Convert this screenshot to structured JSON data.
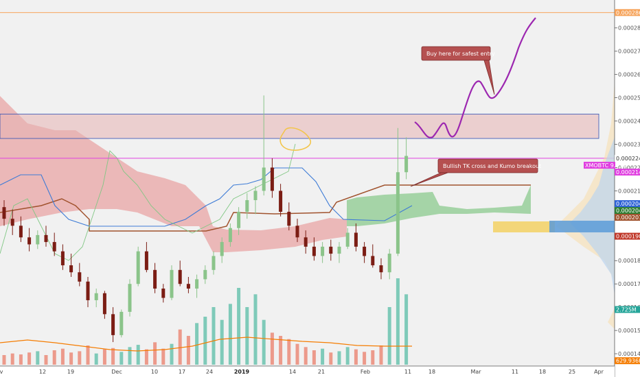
{
  "chart_data": {
    "type": "candlestick",
    "y_scale": {
      "min": 0.00013,
      "max": 0.000292
    },
    "price_ticks": [
      "0.0002800",
      "0.0002700",
      "0.0002600",
      "0.0002500",
      "0.0002400",
      "0.0002300",
      "0.0002200",
      "0.0002100",
      "0.0001900",
      "0.0001800",
      "0.0001700",
      "0.0001600",
      "0.0001500",
      "0.0001400"
    ],
    "x_labels": [
      "v",
      "12",
      "19",
      "Dec",
      "10",
      "17",
      "24",
      "2019",
      "14",
      "21",
      "Feb",
      "11",
      "18",
      "Mar",
      "11",
      "18",
      "25",
      "Apr"
    ],
    "bold_x_labels": [
      "2019"
    ],
    "tags": [
      {
        "text": "0.0002866",
        "price": 0.0002866,
        "bg": "#f6a35a",
        "fg": "#fff"
      },
      {
        "text": "0.0002240",
        "price": 0.000224,
        "bg": "#ffffff",
        "fg": "#333"
      },
      {
        "text": "XMOBTC 9.75%",
        "price": 0.000221,
        "bg": "#e040e0",
        "fg": "#fff"
      },
      {
        "text": "0.0002140",
        "price": 0.000221,
        "bg": "#e040e0",
        "fg": "#fff"
      },
      {
        "text": "0.0002045",
        "price": 0.0002045,
        "bg": "#2f63d6",
        "fg": "#fff"
      },
      {
        "text": "0.0002040",
        "price": 0.0002022,
        "bg": "#2e7d32",
        "fg": "#fff"
      },
      {
        "text": "0.0002015",
        "price": 0.0002,
        "bg": "#a0522d",
        "fg": "#fff"
      },
      {
        "text": "0.0001905",
        "price": 0.0001905,
        "bg": "#c0392b",
        "fg": "#fff"
      },
      {
        "text": "2.725M",
        "price": 0.000159,
        "bg": "#26a69a",
        "fg": "#fff"
      },
      {
        "text": "629.936K",
        "price": 0.000137,
        "bg": "#f57c00",
        "fg": "#fff"
      }
    ],
    "annotations": [
      {
        "text": "Buy here for safest entry"
      },
      {
        "text": "Bullish TK cross and Kumo breakout"
      }
    ],
    "resistance_zone": {
      "top": 0.000243,
      "bottom": 0.0002325
    },
    "horizontal_lines": [
      {
        "price": 0.0002866,
        "color": "#f6a35a"
      },
      {
        "price": 0.000224,
        "color": "#e040e0"
      }
    ],
    "candles": [
      [
        0.000203,
        0.000206,
        0.000195,
        0.000198
      ],
      [
        0.000198,
        0.000202,
        0.000191,
        0.000195
      ],
      [
        0.000195,
        0.000199,
        0.000188,
        0.00019
      ],
      [
        0.00019,
        0.000194,
        0.000184,
        0.000187
      ],
      [
        0.000187,
        0.000193,
        0.000185,
        0.000191
      ],
      [
        0.000191,
        0.000195,
        0.000186,
        0.000188
      ],
      [
        0.000188,
        0.000192,
        0.000182,
        0.000184
      ],
      [
        0.000184,
        0.000187,
        0.000176,
        0.000178
      ],
      [
        0.000178,
        0.000183,
        0.000173,
        0.000175
      ],
      [
        0.000175,
        0.000179,
        0.000169,
        0.000171
      ],
      [
        0.000171,
        0.000173,
        0.00016,
        0.000163
      ],
      [
        0.000163,
        0.000168,
        0.00016,
        0.000166
      ],
      [
        0.000166,
        0.000167,
        0.000155,
        0.000157
      ],
      [
        0.000157,
        0.00016,
        0.000145,
        0.000148
      ],
      [
        0.000148,
        0.000159,
        0.000147,
        0.000158
      ],
      [
        0.000158,
        0.000172,
        0.000156,
        0.00017
      ],
      [
        0.00017,
        0.000186,
        0.000169,
        0.000184
      ],
      [
        0.000184,
        0.000188,
        0.000175,
        0.000176
      ],
      [
        0.000176,
        0.000179,
        0.000166,
        0.000168
      ],
      [
        0.000168,
        0.00017,
        0.000162,
        0.000164
      ],
      [
        0.000164,
        0.000178,
        0.000163,
        0.000176
      ],
      [
        0.000176,
        0.00018,
        0.000169,
        0.00017
      ],
      [
        0.00017,
        0.000173,
        0.000166,
        0.000168
      ],
      [
        0.000168,
        0.000174,
        0.000164,
        0.000172
      ],
      [
        0.000172,
        0.000178,
        0.00017,
        0.000176
      ],
      [
        0.000176,
        0.000184,
        0.000174,
        0.000182
      ],
      [
        0.000182,
        0.00019,
        0.000179,
        0.000188
      ],
      [
        0.000188,
        0.000196,
        0.000186,
        0.000194
      ],
      [
        0.000194,
        0.000203,
        0.000191,
        0.000201
      ],
      [
        0.000201,
        0.000209,
        0.000198,
        0.000206
      ],
      [
        0.000206,
        0.000212,
        0.0002,
        0.00021
      ],
      [
        0.00021,
        0.000251,
        0.000208,
        0.00022
      ],
      [
        0.00022,
        0.000224,
        0.000207,
        0.00021
      ],
      [
        0.00021,
        0.000213,
        0.000199,
        0.000201
      ],
      [
        0.000201,
        0.000205,
        0.000193,
        0.000195
      ],
      [
        0.000195,
        0.000198,
        0.000188,
        0.00019
      ],
      [
        0.00019,
        0.000193,
        0.000183,
        0.000186
      ],
      [
        0.000186,
        0.00019,
        0.00018,
        0.000182
      ],
      [
        0.000182,
        0.000188,
        0.000179,
        0.000186
      ],
      [
        0.000186,
        0.000189,
        0.00018,
        0.000183
      ],
      [
        0.000183,
        0.000188,
        0.000179,
        0.000186
      ],
      [
        0.000186,
        0.000194,
        0.000185,
        0.000192
      ],
      [
        0.000192,
        0.000196,
        0.000184,
        0.000186
      ],
      [
        0.000186,
        0.000188,
        0.000179,
        0.000182
      ],
      [
        0.000182,
        0.000187,
        0.000177,
        0.000178
      ],
      [
        0.000178,
        0.000181,
        0.000172,
        0.000175
      ],
      [
        0.000175,
        0.000185,
        0.000172,
        0.000183
      ],
      [
        0.000183,
        0.000237,
        0.000182,
        0.000218
      ],
      [
        0.000218,
        0.000233,
        0.000215,
        0.000225
      ]
    ],
    "volume_max": 3000000,
    "volumes": [
      300000,
      350000,
      320000,
      380000,
      420000,
      300000,
      450000,
      500000,
      380000,
      420000,
      600000,
      350000,
      480000,
      520000,
      400000,
      550000,
      620000,
      480000,
      700000,
      500000,
      650000,
      1100000,
      900000,
      1300000,
      1500000,
      1800000,
      1400000,
      1900000,
      2400000,
      1800000,
      2200000,
      1400000,
      1000000,
      900000,
      800000,
      650000,
      550000,
      450000,
      500000,
      380000,
      420000,
      550000,
      480000,
      400000,
      450000,
      600000,
      1800000,
      2700000,
      2200000
    ],
    "volume_up": [
      false,
      false,
      false,
      false,
      true,
      false,
      false,
      false,
      false,
      false,
      false,
      true,
      false,
      false,
      true,
      true,
      true,
      false,
      false,
      false,
      true,
      false,
      false,
      true,
      true,
      true,
      true,
      true,
      true,
      true,
      true,
      true,
      false,
      false,
      false,
      false,
      false,
      false,
      true,
      false,
      true,
      true,
      false,
      false,
      false,
      false,
      true,
      true,
      true
    ]
  }
}
